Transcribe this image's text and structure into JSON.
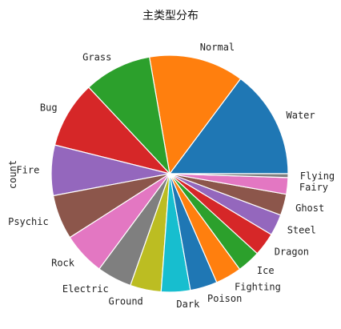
{
  "chart_data": {
    "type": "pie",
    "title": "主类型分布",
    "ylabel": "count",
    "start_angle_deg": 0,
    "direction": "counterclockwise",
    "edge_color": "#ffffff",
    "slices": [
      {
        "label": "Water",
        "value": 112,
        "color": "#1f77b4"
      },
      {
        "label": "Normal",
        "value": 98,
        "color": "#ff7f0e"
      },
      {
        "label": "Grass",
        "value": 70,
        "color": "#2ca02c"
      },
      {
        "label": "Bug",
        "value": 69,
        "color": "#d62728"
      },
      {
        "label": "Fire",
        "value": 52,
        "color": "#9467bd"
      },
      {
        "label": "Psychic",
        "value": 46,
        "color": "#8c564b"
      },
      {
        "label": "Rock",
        "value": 44,
        "color": "#e377c2"
      },
      {
        "label": "Electric",
        "value": 36,
        "color": "#7f7f7f"
      },
      {
        "label": "Ground",
        "value": 32,
        "color": "#bcbd22"
      },
      {
        "label": "Dark",
        "value": 30,
        "color": "#17becf"
      },
      {
        "label": "Poison",
        "value": 28,
        "color": "#1f77b4"
      },
      {
        "label": "Fighting",
        "value": 27,
        "color": "#ff7f0e"
      },
      {
        "label": "Ice",
        "value": 24,
        "color": "#2ca02c"
      },
      {
        "label": "Dragon",
        "value": 24,
        "color": "#d62728"
      },
      {
        "label": "Steel",
        "value": 22,
        "color": "#9467bd"
      },
      {
        "label": "Ghost",
        "value": 22,
        "color": "#8c564b"
      },
      {
        "label": "Fairy",
        "value": 17,
        "color": "#e377c2"
      },
      {
        "label": "Flying",
        "value": 4,
        "color": "#7f7f7f"
      }
    ]
  }
}
